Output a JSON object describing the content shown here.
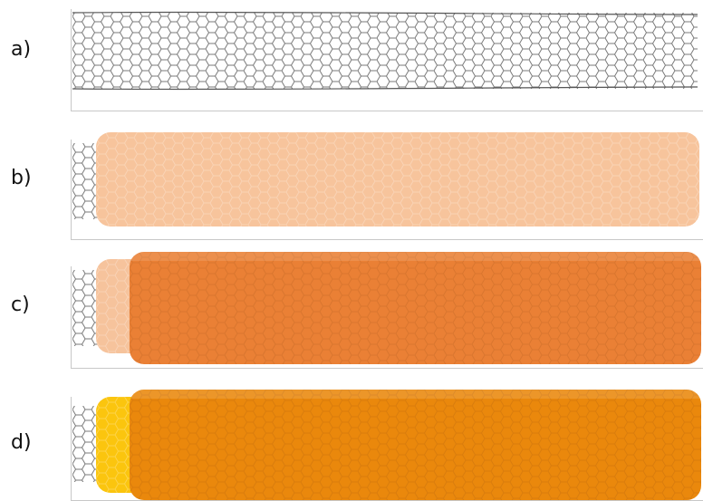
{
  "panels": [
    {
      "label": "a)",
      "coatings": []
    },
    {
      "label": "b)",
      "coatings": [
        {
          "color": "#f7c49c"
        }
      ]
    },
    {
      "label": "c)",
      "coatings": [
        {
          "color": "#f6c39c"
        },
        {
          "color": "#ea8035"
        }
      ]
    },
    {
      "label": "d)",
      "coatings": [
        {
          "color": "#fbc50e"
        },
        {
          "color": "#ea880c"
        }
      ]
    }
  ]
}
